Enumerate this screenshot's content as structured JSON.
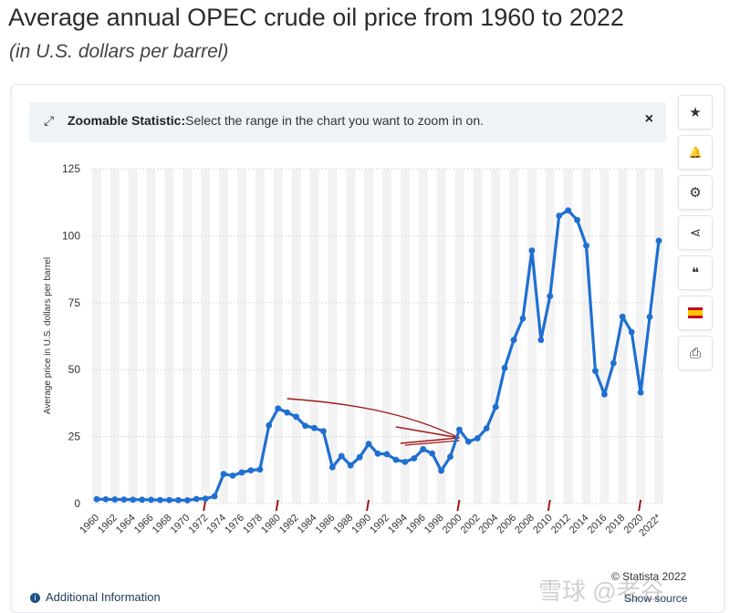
{
  "page": {
    "title": "Average annual OPEC crude oil price from 1960 to 2022",
    "subtitle": "(in U.S. dollars per barrel)"
  },
  "zoom_banner": {
    "label": "Zoomable Statistic:",
    "text": "Select the range in the chart you want to zoom in on.",
    "close": "×"
  },
  "sidebar": {
    "items": [
      {
        "name": "star-icon",
        "glyph": "★"
      },
      {
        "name": "bell-icon",
        "glyph": "🔔"
      },
      {
        "name": "gear-icon",
        "glyph": "⚙"
      },
      {
        "name": "share-icon",
        "glyph": "⋖"
      },
      {
        "name": "quote-icon",
        "glyph": "❝"
      },
      {
        "name": "flag-icon",
        "glyph": ""
      },
      {
        "name": "print-icon",
        "glyph": "⎙"
      }
    ]
  },
  "footer": {
    "additional_info": "Additional Information",
    "copyright": "© Statista 2022",
    "show_source": "Show source",
    "watermark": "雪球 @老谷"
  },
  "colors": {
    "line": "#1f6fd1",
    "grid": "#d9d9d9",
    "band": "#f2f2f2",
    "annotation": "#a01818"
  },
  "chart_data": {
    "type": "line",
    "title": "Average annual OPEC crude oil price from 1960 to 2022",
    "ylabel": "Average price in U.S. dollars per barrel",
    "xlabel": "",
    "ylim": [
      0,
      125
    ],
    "yticks": [
      0,
      25,
      50,
      75,
      100,
      125
    ],
    "x_tick_labels": [
      "1960",
      "1962",
      "1964",
      "1966",
      "1968",
      "1970",
      "1972",
      "1974",
      "1976",
      "1978",
      "1980",
      "1982",
      "1984",
      "1986",
      "1988",
      "1990",
      "1992",
      "1994",
      "1996",
      "1998",
      "2000",
      "2002",
      "2004",
      "2006",
      "2008",
      "2010",
      "2012",
      "2014",
      "2016",
      "2018",
      "2020",
      "2022*"
    ],
    "x": [
      1960,
      1961,
      1962,
      1963,
      1964,
      1965,
      1966,
      1967,
      1968,
      1969,
      1970,
      1971,
      1972,
      1973,
      1974,
      1975,
      1976,
      1977,
      1978,
      1979,
      1980,
      1981,
      1982,
      1983,
      1984,
      1985,
      1986,
      1987,
      1988,
      1989,
      1990,
      1991,
      1992,
      1993,
      1994,
      1995,
      1996,
      1997,
      1998,
      1999,
      2000,
      2001,
      2002,
      2003,
      2004,
      2005,
      2006,
      2007,
      2008,
      2009,
      2010,
      2011,
      2012,
      2013,
      2014,
      2015,
      2016,
      2017,
      2018,
      2019,
      2020,
      2021,
      2022
    ],
    "series": [
      {
        "name": "OPEC crude oil price",
        "values": [
          1.63,
          1.57,
          1.52,
          1.5,
          1.45,
          1.42,
          1.4,
          1.33,
          1.32,
          1.28,
          1.21,
          1.7,
          1.82,
          2.7,
          11.0,
          10.43,
          11.6,
          12.4,
          12.7,
          29.19,
          35.52,
          34.0,
          32.38,
          29.04,
          28.2,
          27.01,
          13.53,
          17.73,
          14.24,
          17.31,
          22.26,
          18.62,
          18.44,
          16.33,
          15.53,
          16.86,
          20.29,
          18.68,
          12.28,
          17.47,
          27.6,
          23.12,
          24.36,
          28.1,
          36.05,
          50.64,
          61.08,
          69.08,
          94.45,
          61.06,
          77.45,
          107.46,
          109.45,
          105.87,
          96.29,
          49.49,
          40.76,
          52.43,
          69.78,
          64.04,
          41.47,
          69.72,
          98.14
        ]
      }
    ],
    "legend": "none",
    "grid": true
  }
}
